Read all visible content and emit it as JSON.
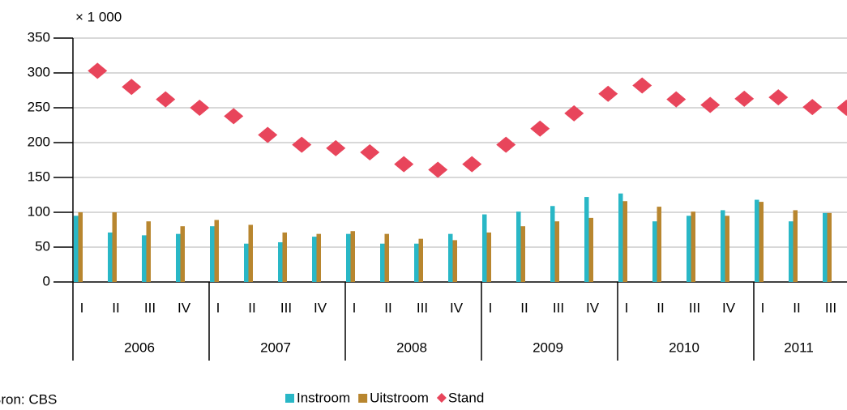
{
  "chart_data": {
    "type": "bar-line",
    "unit_label": "× 1 000",
    "source": "Bron: CBS",
    "categories": [
      "I",
      "II",
      "III",
      "IV",
      "I",
      "II",
      "III",
      "IV",
      "I",
      "II",
      "III",
      "IV",
      "I",
      "II",
      "III",
      "IV",
      "I",
      "II",
      "III",
      "IV",
      "I",
      "II",
      "III"
    ],
    "years": [
      "2006",
      "2007",
      "2008",
      "2009",
      "2010",
      "2011"
    ],
    "series": [
      {
        "name": "Instroom",
        "color": "#29b7c6",
        "kind": "bar",
        "values": [
          95,
          71,
          67,
          69,
          80,
          55,
          57,
          65,
          69,
          55,
          55,
          69,
          97,
          101,
          109,
          122,
          127,
          87,
          95,
          103,
          118,
          87,
          99
        ]
      },
      {
        "name": "Uitstroom",
        "color": "#b8862f",
        "kind": "bar",
        "values": [
          100,
          100,
          87,
          80,
          89,
          82,
          71,
          69,
          73,
          69,
          62,
          60,
          71,
          80,
          87,
          92,
          116,
          108,
          101,
          95,
          115,
          103,
          99
        ]
      },
      {
        "name": "Stand",
        "color": "#e8455b",
        "kind": "diamond",
        "values": [
          303,
          280,
          262,
          250,
          238,
          211,
          197,
          192,
          186,
          169,
          161,
          169,
          197,
          220,
          242,
          270,
          282,
          262,
          254,
          263,
          265,
          251,
          250
        ]
      }
    ],
    "ylim": [
      0,
      350
    ],
    "yticks": [
      0,
      50,
      100,
      150,
      200,
      250,
      300,
      350
    ],
    "grid": true
  }
}
